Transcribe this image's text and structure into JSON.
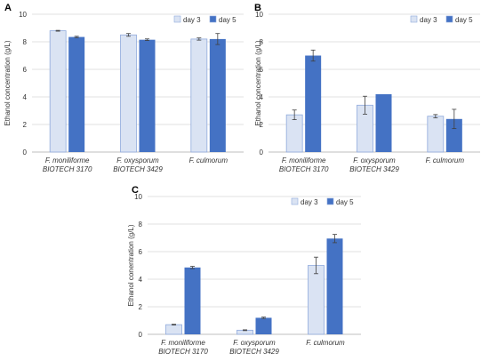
{
  "series_colors": {
    "day3": "#dae3f3",
    "day5": "#4472c4"
  },
  "chart_data": [
    {
      "type": "bar",
      "panel": "A",
      "ylabel": "Ethanol concentration (g/L)",
      "ylim": [
        0,
        10
      ],
      "yticks": [
        "0",
        "2",
        "4",
        "6",
        "8",
        "10"
      ],
      "legend_position": "top-right",
      "categories": [
        [
          "F. moniliforme",
          "BIOTECH 3170"
        ],
        [
          "F. oxysporum",
          "BIOTECH 3429"
        ],
        [
          "F. culmorum"
        ]
      ],
      "series": [
        {
          "name": "day 3",
          "values": [
            8.8,
            8.5,
            8.2
          ],
          "errors": [
            0.03,
            0.1,
            0.08
          ]
        },
        {
          "name": "day 5",
          "values": [
            8.35,
            8.15,
            8.2
          ],
          "errors": [
            0.05,
            0.06,
            0.4
          ]
        }
      ]
    },
    {
      "type": "bar",
      "panel": "B",
      "ylabel": "Ethanol concentration (g/L)",
      "ylim": [
        0,
        10
      ],
      "yticks": [
        "0",
        "2",
        "4",
        "6",
        "8",
        "10"
      ],
      "legend_position": "top-right",
      "categories": [
        [
          "F. moniliforme",
          "BIOTECH 3170"
        ],
        [
          "F. oxysporum",
          "BIOTECH 3429"
        ],
        [
          "F. culmorum"
        ]
      ],
      "series": [
        {
          "name": "day 3",
          "values": [
            2.7,
            3.4,
            2.6
          ],
          "errors": [
            0.35,
            0.65,
            0.12
          ]
        },
        {
          "name": "day 5",
          "values": [
            7.0,
            4.2,
            2.4
          ],
          "errors": [
            0.4,
            0.0,
            0.7
          ]
        }
      ]
    },
    {
      "type": "bar",
      "panel": "C",
      "ylabel": "Ethanol conentration (g/L)",
      "ylim": [
        0,
        10
      ],
      "yticks": [
        "0",
        "2",
        "4",
        "6",
        "8",
        "10"
      ],
      "legend_position": "top-right",
      "categories": [
        [
          "F. moniliforme",
          "BIOTECH 3170"
        ],
        [
          "F. oxysporum",
          "BIOTECH 3429"
        ],
        [
          "F. culmorum"
        ]
      ],
      "series": [
        {
          "name": "day 3",
          "values": [
            0.7,
            0.3,
            5.0
          ],
          "errors": [
            0.03,
            0.03,
            0.6
          ]
        },
        {
          "name": "day 5",
          "values": [
            4.85,
            1.2,
            6.95
          ],
          "errors": [
            0.08,
            0.05,
            0.3
          ]
        }
      ]
    }
  ]
}
